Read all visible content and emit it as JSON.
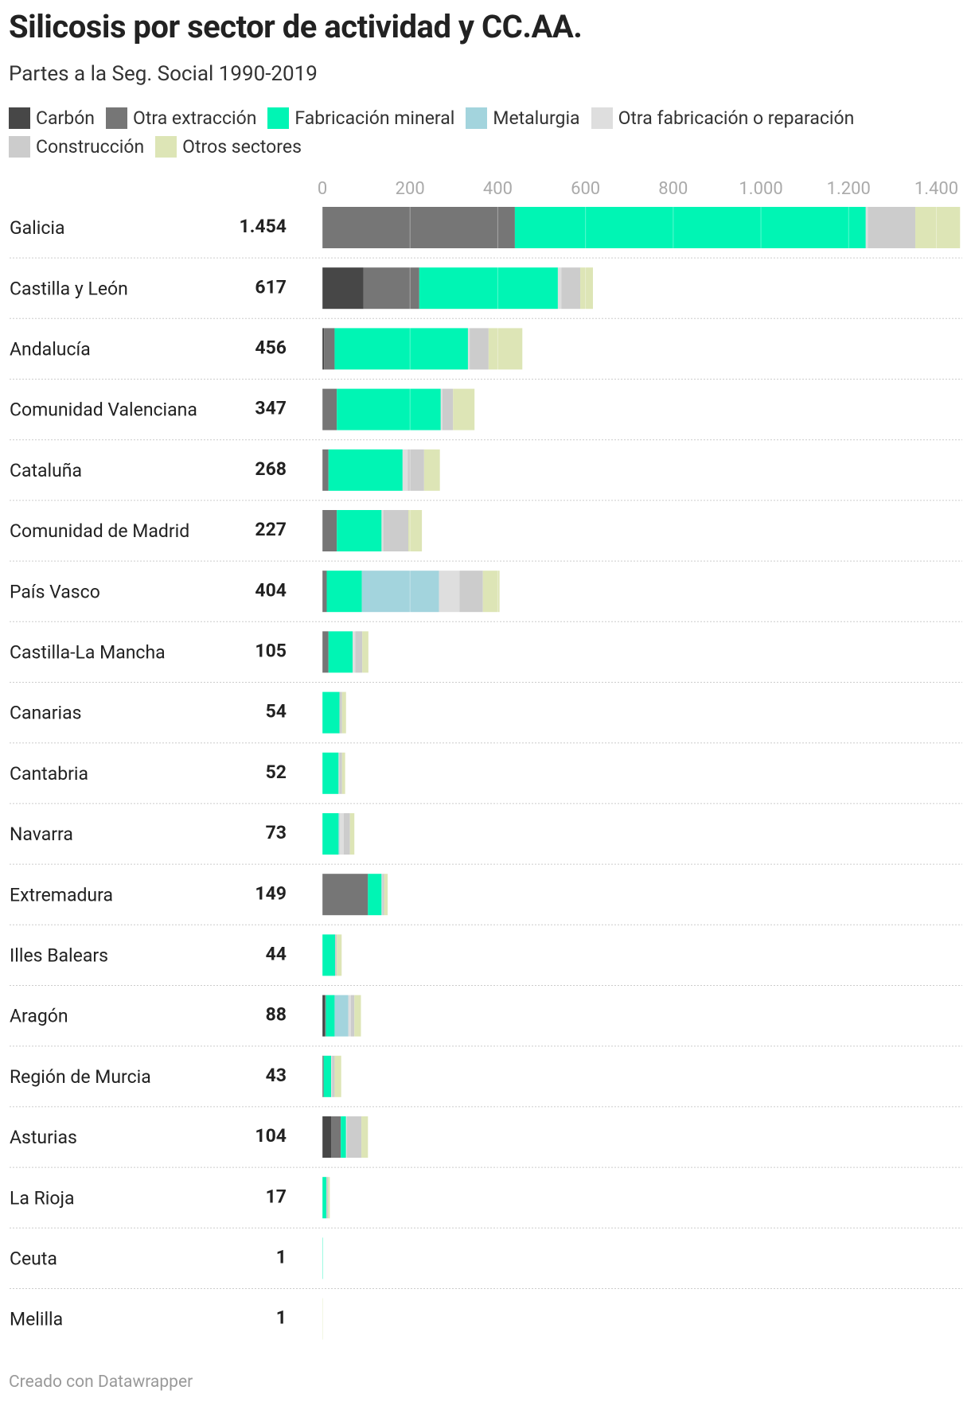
{
  "chart_data": {
    "type": "stacked-bar-horizontal",
    "title": "Silicosis por sector de actividad y CC.AA.",
    "subtitle": "Partes a la Seg. Social 1990-2019",
    "source": "Creado con Datawrapper",
    "categories": [
      "Galicia",
      "Castilla y León",
      "Andalucía",
      "Comunidad Valenciana",
      "Cataluña",
      "Comunidad de Madrid",
      "País Vasco",
      "Castilla-La Mancha",
      "Canarias",
      "Cantabria",
      "Navarra",
      "Extremadura",
      "Illes Balears",
      "Aragón",
      "Región de Murcia",
      "Asturias",
      "La Rioja",
      "Ceuta",
      "Melilla"
    ],
    "totals": {
      "values": [
        1454,
        617,
        456,
        347,
        268,
        227,
        404,
        105,
        54,
        52,
        73,
        149,
        44,
        88,
        43,
        104,
        17,
        1,
        1
      ],
      "value_labels": [
        "1.454",
        "617",
        "456",
        "347",
        "268",
        "227",
        "404",
        "105",
        "54",
        "52",
        "73",
        "149",
        "44",
        "88",
        "43",
        "104",
        "17",
        "1",
        "1"
      ]
    },
    "series": [
      {
        "name": "Carbón",
        "color": "#474747",
        "values": [
          0,
          94,
          4,
          0,
          0,
          0,
          0,
          0,
          0,
          0,
          0,
          0,
          0,
          6,
          0,
          20,
          0,
          0,
          0
        ]
      },
      {
        "name": "Otra extracción",
        "color": "#767676",
        "values": [
          439,
          127,
          24,
          33,
          14,
          33,
          10,
          14,
          0,
          0,
          0,
          104,
          0,
          2,
          3,
          22,
          0,
          0,
          0
        ]
      },
      {
        "name": "Fabricación mineral",
        "color": "#00f5b4",
        "values": [
          800,
          316,
          304,
          237,
          169,
          102,
          80,
          55,
          39,
          37,
          37,
          31,
          29,
          20,
          17,
          12,
          9,
          1,
          0
        ]
      },
      {
        "name": "Metalurgia",
        "color": "#a3d4dd",
        "values": [
          0,
          0,
          0,
          0,
          0,
          0,
          176,
          0,
          0,
          0,
          2,
          0,
          0,
          31,
          0,
          0,
          0,
          0,
          0
        ]
      },
      {
        "name": "Otra fabricación o reparación",
        "color": "#dedede",
        "values": [
          5,
          8,
          4,
          4,
          12,
          4,
          47,
          6,
          0,
          2,
          10,
          2,
          0,
          6,
          2,
          2,
          0,
          0,
          0
        ]
      },
      {
        "name": "Construcción",
        "color": "#cccccc",
        "values": [
          108,
          43,
          43,
          24,
          37,
          57,
          53,
          16,
          6,
          6,
          14,
          4,
          4,
          8,
          6,
          33,
          4,
          0,
          0
        ]
      },
      {
        "name": "Otros sectores",
        "color": "#dde5b6",
        "values": [
          102,
          29,
          77,
          49,
          36,
          31,
          38,
          14,
          9,
          7,
          10,
          8,
          11,
          15,
          15,
          15,
          4,
          0,
          1
        ]
      }
    ],
    "xlim": [
      0,
      1459
    ],
    "xticks": [
      0,
      200,
      400,
      600,
      800,
      {
        "value": 1000,
        "label": "1.000"
      },
      {
        "value": 1200,
        "label": "1.200"
      },
      {
        "value": 1400,
        "label": "1.400"
      }
    ],
    "grid": true
  }
}
